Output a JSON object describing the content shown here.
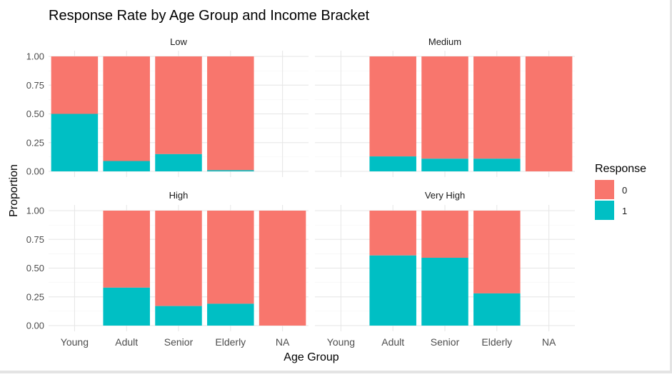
{
  "chart_data": {
    "type": "bar",
    "stacked": true,
    "title": "Response Rate by Age Group and Income Bracket",
    "xlabel": "Age Group",
    "ylabel": "Proportion",
    "ylim": [
      0,
      1
    ],
    "yticks": [
      0,
      0.25,
      0.5,
      0.75,
      1
    ],
    "ytick_labels": [
      "0.00",
      "0.25",
      "0.50",
      "0.75",
      "1.00"
    ],
    "categories": [
      "Young",
      "Adult",
      "Senior",
      "Elderly",
      "NA"
    ],
    "legend": {
      "title": "Response",
      "position": "right",
      "entries": [
        {
          "label": "0",
          "color": "#F8766D"
        },
        {
          "label": "1",
          "color": "#00BFC4"
        }
      ]
    },
    "facets": [
      {
        "name": "Low",
        "response_1": [
          0.5,
          0.09,
          0.15,
          0.01,
          null
        ],
        "response_0": [
          0.5,
          0.91,
          0.85,
          0.99,
          null
        ]
      },
      {
        "name": "Medium",
        "response_1": [
          null,
          0.13,
          0.11,
          0.11,
          0.0
        ],
        "response_0": [
          null,
          0.87,
          0.89,
          0.89,
          1.0
        ]
      },
      {
        "name": "High",
        "response_1": [
          null,
          0.33,
          0.17,
          0.19,
          0.0
        ],
        "response_0": [
          null,
          0.67,
          0.83,
          0.81,
          1.0
        ]
      },
      {
        "name": "Very High",
        "response_1": [
          null,
          0.61,
          0.59,
          0.28,
          null
        ],
        "response_0": [
          null,
          0.39,
          0.41,
          0.72,
          null
        ]
      }
    ]
  }
}
